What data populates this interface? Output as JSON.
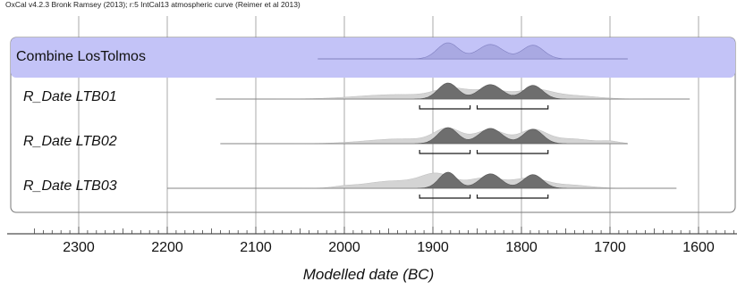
{
  "header": "OxCal v4.2.3 Bronk Ramsey (2013); r:5 IntCal13 atmospheric curve (Reimer et al 2013)",
  "chart_data": {
    "type": "area",
    "xlabel": "Modelled date (BC)",
    "x_axis": {
      "min": 2350,
      "max": 1560,
      "direction": "reversed",
      "ticks": [
        2300,
        2200,
        2100,
        2000,
        1900,
        1800,
        1700,
        1600
      ]
    },
    "grid": true,
    "colors": {
      "combine_band": "#c3c3f7",
      "combine_fill": "#a9a9e2",
      "posterior": "#6e6e6e",
      "prior": "#d4d4d4",
      "range_line": "#1a1a1a",
      "grid": "#aaaaaa",
      "frame": "#777777"
    },
    "rows": [
      {
        "label": "Combine LosTolmos",
        "style": "combine",
        "extent": [
          2030,
          1680
        ],
        "posterior_peaks": [
          [
            1883,
            1.0,
            12
          ],
          [
            1835,
            0.9,
            14
          ],
          [
            1787,
            0.85,
            12
          ]
        ],
        "prior_peaks": [],
        "ranges": []
      },
      {
        "label": "R_Date LTB01",
        "style": "rdate",
        "extent": [
          2145,
          1610
        ],
        "posterior_peaks": [
          [
            1883,
            1.0,
            11
          ],
          [
            1835,
            0.9,
            13
          ],
          [
            1787,
            0.85,
            11
          ]
        ],
        "prior_peaks": [
          [
            1940,
            0.28,
            45
          ],
          [
            1880,
            0.55,
            18
          ],
          [
            1835,
            0.55,
            20
          ],
          [
            1785,
            0.52,
            18
          ],
          [
            1745,
            0.22,
            28
          ]
        ],
        "ranges": [
          [
            1915,
            1858
          ],
          [
            1850,
            1770
          ]
        ]
      },
      {
        "label": "R_Date LTB02",
        "style": "rdate",
        "extent": [
          2140,
          1680
        ],
        "posterior_peaks": [
          [
            1883,
            1.0,
            11
          ],
          [
            1835,
            0.95,
            13
          ],
          [
            1787,
            0.9,
            11
          ]
        ],
        "prior_peaks": [
          [
            1935,
            0.3,
            40
          ],
          [
            1883,
            0.85,
            15
          ],
          [
            1835,
            0.85,
            17
          ],
          [
            1787,
            0.82,
            15
          ],
          [
            1745,
            0.3,
            25
          ],
          [
            1700,
            0.12,
            10
          ]
        ],
        "ranges": [
          [
            1915,
            1858
          ],
          [
            1850,
            1770
          ]
        ]
      },
      {
        "label": "R_Date LTB03",
        "style": "rdate",
        "extent": [
          2200,
          1625
        ],
        "posterior_peaks": [
          [
            1883,
            1.0,
            10
          ],
          [
            1835,
            0.9,
            12
          ],
          [
            1787,
            0.85,
            11
          ]
        ],
        "prior_peaks": [
          [
            2000,
            0.08,
            12
          ],
          [
            1945,
            0.45,
            32
          ],
          [
            1895,
            0.8,
            18
          ],
          [
            1840,
            0.65,
            20
          ],
          [
            1790,
            0.6,
            18
          ],
          [
            1745,
            0.2,
            22
          ]
        ],
        "ranges": [
          [
            1915,
            1858
          ],
          [
            1850,
            1770
          ]
        ]
      }
    ]
  }
}
